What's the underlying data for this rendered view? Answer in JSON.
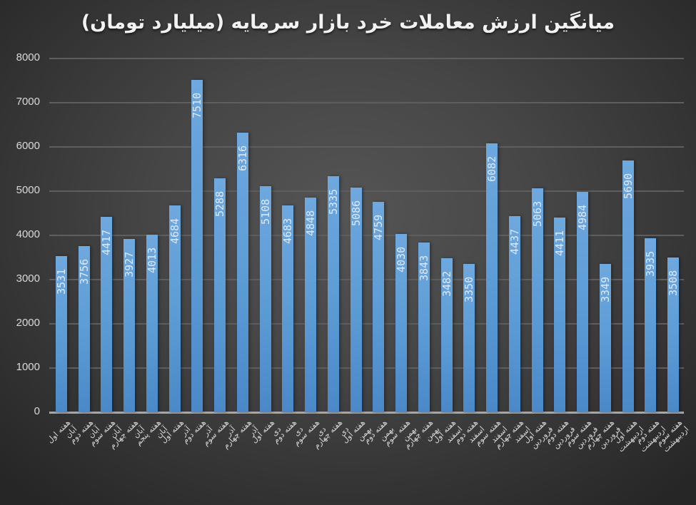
{
  "chart_data": {
    "type": "bar",
    "title": "میانگین ارزش معاملات خرد بازار سرمایه (میلیارد تومان)",
    "xlabel": "",
    "ylabel": "",
    "ylim": [
      0,
      8000
    ],
    "yticks": [
      0,
      1000,
      2000,
      3000,
      4000,
      5000,
      6000,
      7000,
      8000
    ],
    "grid": true,
    "legend": "none",
    "data_labels": "inside-end-rotated",
    "colors": {
      "bar": "#5b9bd5",
      "label": "#dde9f6",
      "background": "#404040",
      "grid": "#5e5e5e",
      "axis": "#a6a6a6",
      "text": "#d9d9d9"
    },
    "categories": [
      "هفته اول آبان",
      "هفته دوم آبان",
      "هفته سوم آبان",
      "هفته چهارم آبان",
      "هفته پنجم آبان",
      "هفته اول آذر",
      "هفته دوم آذر",
      "هفته سوم آذر",
      "هفته چهارم آذر",
      "هفته اول دی",
      "هفته دوم دی",
      "هفته سوم دی",
      "هفته چهارم دی",
      "هفته اول بهمن",
      "هفته دوم بهمن",
      "هفته سوم بهمن",
      "هفته چهارم بهمن",
      "هفته اول اسفند",
      "هفته دوم اسفند",
      "هفته سوم اسفند",
      "هفته چهارم اسفند",
      "هفته اول فروردین",
      "هفته دوم فروردین",
      "هفته سوم فروردین",
      "هفته چهارم فروردین",
      "هفته اول اردیبهشت",
      "هفته دوم اردیبهشت",
      "هفته سوم اردیبهشت"
    ],
    "values": [
      3531,
      3756,
      4417,
      3927,
      4013,
      4684,
      7510,
      5288,
      6316,
      5108,
      4683,
      4848,
      5335,
      5086,
      4759,
      4030,
      3843,
      3482,
      3350,
      6082,
      4437,
      5063,
      4411,
      4984,
      3349,
      5690,
      3935,
      3508
    ]
  },
  "bars": [
    {
      "value": "3531",
      "label_1": "هفته اول",
      "label_2": "آبان"
    },
    {
      "value": "3756",
      "label_1": "هفته دوم",
      "label_2": "آبان"
    },
    {
      "value": "4417",
      "label_1": "هفته سوم",
      "label_2": "آبان"
    },
    {
      "value": "3927",
      "label_1": "هفته چهارم",
      "label_2": "آبان"
    },
    {
      "value": "4013",
      "label_1": "هفته پنجم",
      "label_2": "آبان"
    },
    {
      "value": "4684",
      "label_1": "هفته اول",
      "label_2": "آذر"
    },
    {
      "value": "7510",
      "label_1": "هفته دوم",
      "label_2": "آذر"
    },
    {
      "value": "5288",
      "label_1": "هفته سوم",
      "label_2": "آذر"
    },
    {
      "value": "6316",
      "label_1": "هفته چهارم",
      "label_2": "آذر"
    },
    {
      "value": "5108",
      "label_1": "هفته اول",
      "label_2": "دی"
    },
    {
      "value": "4683",
      "label_1": "هفته دوم",
      "label_2": "دی"
    },
    {
      "value": "4848",
      "label_1": "هفته سوم",
      "label_2": "دی"
    },
    {
      "value": "5335",
      "label_1": "هفته چهارم",
      "label_2": "دی"
    },
    {
      "value": "5086",
      "label_1": "هفته اول",
      "label_2": "بهمن"
    },
    {
      "value": "4759",
      "label_1": "هفته دوم",
      "label_2": "بهمن"
    },
    {
      "value": "4030",
      "label_1": "هفته سوم",
      "label_2": "بهمن"
    },
    {
      "value": "3843",
      "label_1": "هفته چهارم",
      "label_2": "بهمن"
    },
    {
      "value": "3482",
      "label_1": "هفته اول",
      "label_2": "اسفند"
    },
    {
      "value": "3350",
      "label_1": "هفته دوم",
      "label_2": "اسفند"
    },
    {
      "value": "6082",
      "label_1": "هفته سوم",
      "label_2": "اسفند"
    },
    {
      "value": "4437",
      "label_1": "هفته چهارم",
      "label_2": "اسفند"
    },
    {
      "value": "5063",
      "label_1": "هفته اول",
      "label_2": "فروردین"
    },
    {
      "value": "4411",
      "label_1": "هفته دوم",
      "label_2": "فروردین"
    },
    {
      "value": "4984",
      "label_1": "هفته سوم",
      "label_2": "فروردین"
    },
    {
      "value": "3349",
      "label_1": "هفته چهارم",
      "label_2": "فروردین"
    },
    {
      "value": "5690",
      "label_1": "هفته اول",
      "label_2": "اردیبهشت"
    },
    {
      "value": "3935",
      "label_1": "هفته دوم",
      "label_2": "اردیبهشت"
    },
    {
      "value": "3508",
      "label_1": "هفته سوم",
      "label_2": "اردیبهشت"
    }
  ],
  "yticks": [
    "0",
    "1000",
    "2000",
    "3000",
    "4000",
    "5000",
    "6000",
    "7000",
    "8000"
  ]
}
